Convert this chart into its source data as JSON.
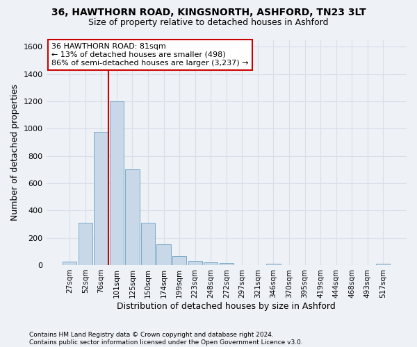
{
  "title_line1": "36, HAWTHORN ROAD, KINGSNORTH, ASHFORD, TN23 3LT",
  "title_line2": "Size of property relative to detached houses in Ashford",
  "xlabel": "Distribution of detached houses by size in Ashford",
  "ylabel": "Number of detached properties",
  "categories": [
    "27sqm",
    "52sqm",
    "76sqm",
    "101sqm",
    "125sqm",
    "150sqm",
    "174sqm",
    "199sqm",
    "223sqm",
    "248sqm",
    "272sqm",
    "297sqm",
    "321sqm",
    "346sqm",
    "370sqm",
    "395sqm",
    "419sqm",
    "444sqm",
    "468sqm",
    "493sqm",
    "517sqm"
  ],
  "values": [
    25,
    310,
    975,
    1200,
    700,
    310,
    150,
    65,
    30,
    20,
    15,
    0,
    0,
    10,
    0,
    0,
    0,
    0,
    0,
    0,
    10
  ],
  "bar_color": "#c8d8e8",
  "bar_edge_color": "#7aaac8",
  "background_color": "#eef2f7",
  "grid_color": "#d8dfe8",
  "annotation_text": "36 HAWTHORN ROAD: 81sqm\n← 13% of detached houses are smaller (498)\n86% of semi-detached houses are larger (3,237) →",
  "annotation_box_color": "#ffffff",
  "annotation_box_edge_color": "#cc0000",
  "vline_color": "#cc0000",
  "vline_x": 2.45,
  "ylim_max": 1650,
  "yticks": [
    0,
    200,
    400,
    600,
    800,
    1000,
    1200,
    1400,
    1600
  ],
  "footnote_line1": "Contains HM Land Registry data © Crown copyright and database right 2024.",
  "footnote_line2": "Contains public sector information licensed under the Open Government Licence v3.0."
}
